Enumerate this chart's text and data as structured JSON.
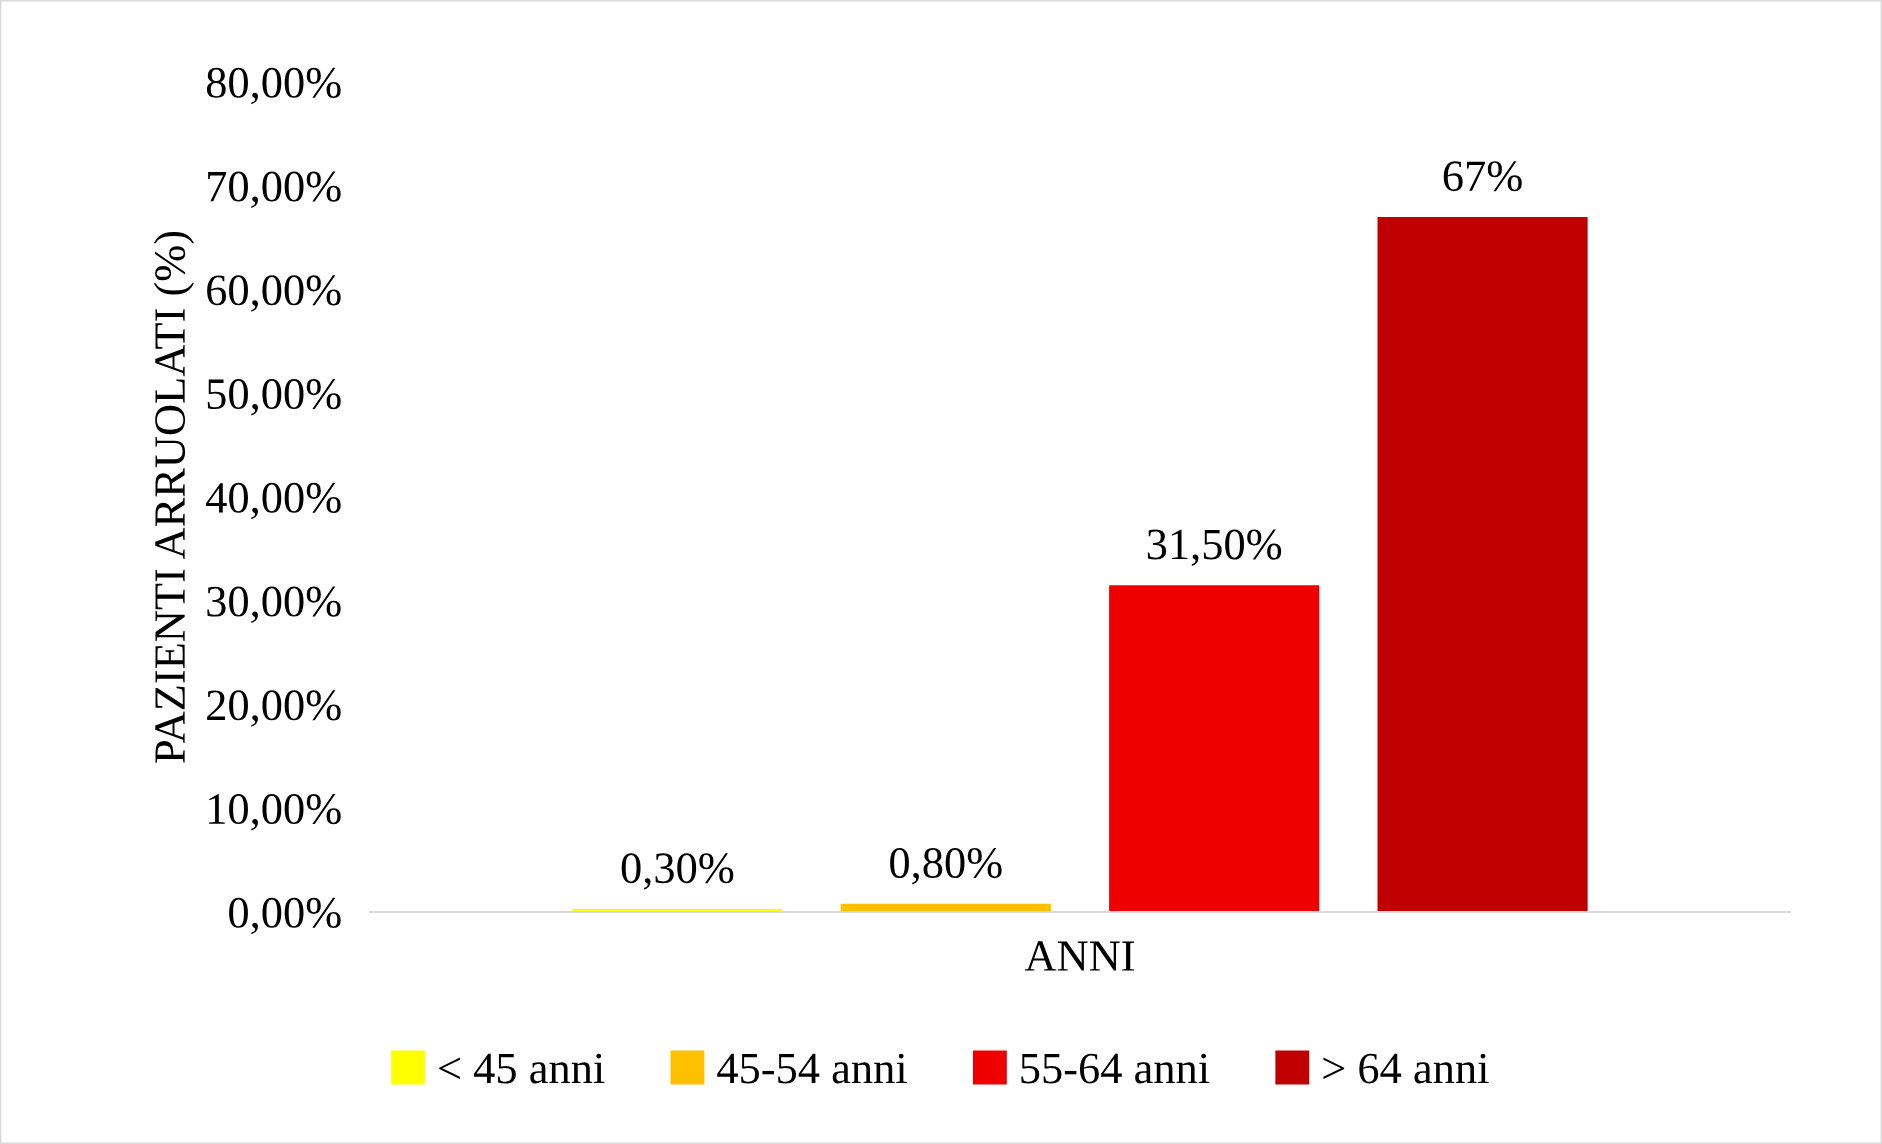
{
  "chart_data": {
    "type": "bar",
    "ylabel": "PAZIENTI ARRUOLATI (%)",
    "categories": [
      "ANNI"
    ],
    "series": [
      {
        "name": "< 45 anni",
        "color": "#ffff00",
        "values": [
          0.3
        ],
        "value_labels": [
          "0,30%"
        ]
      },
      {
        "name": "45-54 anni",
        "color": "#ffc000",
        "values": [
          0.8
        ],
        "value_labels": [
          "0,80%"
        ]
      },
      {
        "name": "55-64 anni",
        "color": "#ee0000",
        "values": [
          31.5
        ],
        "value_labels": [
          "31,50%"
        ]
      },
      {
        "name": "> 64 anni",
        "color": "#c00000",
        "values": [
          67
        ],
        "value_labels": [
          "67%"
        ]
      }
    ],
    "ylim": [
      0,
      80
    ],
    "yticks": [
      {
        "value": 0,
        "label": "0,00%"
      },
      {
        "value": 10,
        "label": "10,00%"
      },
      {
        "value": 20,
        "label": "20,00%"
      },
      {
        "value": 30,
        "label": "30,00%"
      },
      {
        "value": 40,
        "label": "40,00%"
      },
      {
        "value": 50,
        "label": "50,00%"
      },
      {
        "value": 60,
        "label": "60,00%"
      },
      {
        "value": 70,
        "label": "70,00%"
      },
      {
        "value": 80,
        "label": "80,00%"
      }
    ],
    "grid": false,
    "legend": "bottom"
  }
}
